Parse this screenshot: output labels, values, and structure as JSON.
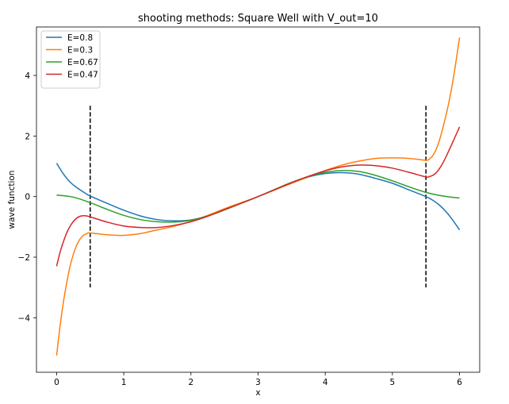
{
  "chart_data": {
    "type": "line",
    "title": "shooting methods: Square Well with V_out=10",
    "xlabel": "x",
    "ylabel": "wave function",
    "xlim": [
      -0.3,
      6.3
    ],
    "ylim": [
      -5.8,
      5.6
    ],
    "xticks": [
      0,
      1,
      2,
      3,
      4,
      5,
      6
    ],
    "yticks": [
      -4,
      -2,
      0,
      2,
      4
    ],
    "legend_position": "top-left",
    "grid": false,
    "series": [
      {
        "name": "E=0.8",
        "color": "#1f77b4",
        "x": [
          0,
          0.1,
          0.2,
          0.3,
          0.4,
          0.5,
          0.75,
          1.0,
          1.25,
          1.5,
          1.75,
          2.0,
          2.25,
          2.5,
          2.75,
          3.0,
          3.25,
          3.5,
          3.75,
          4.0,
          4.25,
          4.5,
          4.75,
          5.0,
          5.25,
          5.5,
          5.6,
          5.7,
          5.8,
          5.9,
          6.0
        ],
        "y": [
          1.1,
          0.75,
          0.48,
          0.3,
          0.15,
          0.02,
          -0.22,
          -0.45,
          -0.64,
          -0.76,
          -0.8,
          -0.77,
          -0.64,
          -0.44,
          -0.22,
          0.0,
          0.23,
          0.46,
          0.65,
          0.76,
          0.79,
          0.74,
          0.6,
          0.44,
          0.22,
          0.0,
          -0.12,
          -0.28,
          -0.5,
          -0.78,
          -1.1
        ]
      },
      {
        "name": "E=0.3",
        "color": "#ff7f0e",
        "x": [
          0,
          0.05,
          0.1,
          0.15,
          0.2,
          0.25,
          0.3,
          0.35,
          0.4,
          0.45,
          0.5,
          0.75,
          1.0,
          1.25,
          1.5,
          1.75,
          2.0,
          2.25,
          2.5,
          2.75,
          3.0,
          3.25,
          3.5,
          3.75,
          4.0,
          4.25,
          4.5,
          4.75,
          5.0,
          5.25,
          5.5,
          5.55,
          5.6,
          5.65,
          5.7,
          5.75,
          5.8,
          5.85,
          5.9,
          5.95,
          6.0
        ],
        "y": [
          -5.25,
          -4.3,
          -3.5,
          -2.85,
          -2.3,
          -1.9,
          -1.6,
          -1.4,
          -1.28,
          -1.22,
          -1.2,
          -1.26,
          -1.28,
          -1.22,
          -1.1,
          -0.98,
          -0.82,
          -0.62,
          -0.4,
          -0.2,
          0.0,
          0.22,
          0.44,
          0.65,
          0.86,
          1.04,
          1.17,
          1.26,
          1.28,
          1.26,
          1.2,
          1.24,
          1.35,
          1.55,
          1.85,
          2.25,
          2.7,
          3.2,
          3.8,
          4.5,
          5.25
        ]
      },
      {
        "name": "E=0.67",
        "color": "#2ca02c",
        "x": [
          0,
          0.25,
          0.5,
          0.75,
          1.0,
          1.25,
          1.5,
          1.75,
          2.0,
          2.25,
          2.5,
          2.75,
          3.0,
          3.25,
          3.5,
          3.75,
          4.0,
          4.25,
          4.5,
          4.75,
          5.0,
          5.25,
          5.5,
          5.75,
          6.0
        ],
        "y": [
          0.05,
          -0.02,
          -0.2,
          -0.42,
          -0.62,
          -0.76,
          -0.83,
          -0.84,
          -0.78,
          -0.64,
          -0.44,
          -0.22,
          0.0,
          0.24,
          0.47,
          0.66,
          0.8,
          0.86,
          0.83,
          0.7,
          0.52,
          0.32,
          0.14,
          0.02,
          -0.05
        ]
      },
      {
        "name": "E=0.47",
        "color": "#d62728",
        "x": [
          0,
          0.05,
          0.1,
          0.15,
          0.2,
          0.25,
          0.3,
          0.35,
          0.4,
          0.45,
          0.5,
          0.75,
          1.0,
          1.25,
          1.5,
          1.75,
          2.0,
          2.25,
          2.5,
          2.75,
          3.0,
          3.25,
          3.5,
          3.75,
          4.0,
          4.25,
          4.5,
          4.75,
          5.0,
          5.25,
          5.5,
          5.55,
          5.6,
          5.65,
          5.7,
          5.75,
          5.8,
          5.85,
          5.9,
          5.95,
          6.0
        ],
        "y": [
          -2.3,
          -1.85,
          -1.5,
          -1.2,
          -0.98,
          -0.82,
          -0.71,
          -0.65,
          -0.63,
          -0.64,
          -0.67,
          -0.84,
          -0.97,
          -1.02,
          -1.02,
          -0.95,
          -0.83,
          -0.65,
          -0.43,
          -0.22,
          0.0,
          0.23,
          0.46,
          0.67,
          0.85,
          0.98,
          1.04,
          1.02,
          0.94,
          0.8,
          0.65,
          0.66,
          0.7,
          0.78,
          0.92,
          1.1,
          1.32,
          1.56,
          1.8,
          2.05,
          2.3
        ]
      }
    ],
    "vlines": [
      {
        "x": 0.5,
        "ymin": -3,
        "ymax": 3,
        "style": "dashed",
        "color": "#000000"
      },
      {
        "x": 5.5,
        "ymin": -3,
        "ymax": 3,
        "style": "dashed",
        "color": "#000000"
      }
    ]
  }
}
